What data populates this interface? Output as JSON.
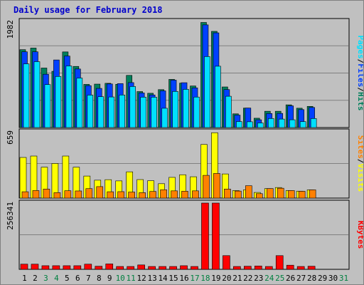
{
  "title": "Daily usage for February 2018",
  "colors": {
    "background": "#c0c0c0",
    "hits": "#00805c",
    "files": "#0040ff",
    "pages": "#00e0ff",
    "visits": "#ffff00",
    "sites": "#ff8000",
    "kbytes": "#ff0000",
    "weekend_label": "#008040",
    "weekday_label": "#000000"
  },
  "chart_data": [
    {
      "type": "bar",
      "panel": "hits-files-pages",
      "legend": [
        "Pages",
        "/",
        "Files",
        "/",
        "Hits"
      ],
      "ymax_label": "1982",
      "ylim": [
        0,
        1982
      ],
      "categories": [
        "1",
        "2",
        "3",
        "4",
        "5",
        "6",
        "7",
        "8",
        "9",
        "10",
        "11",
        "12",
        "13",
        "14",
        "15",
        "16",
        "17",
        "18",
        "19",
        "20",
        "21",
        "22",
        "23",
        "24",
        "25",
        "26",
        "27",
        "28",
        "29",
        "30",
        "31"
      ],
      "series": [
        {
          "name": "Hits",
          "values": [
            1454,
            1484,
            1111,
            1050,
            1412,
            1141,
            806,
            811,
            826,
            807,
            974,
            672,
            640,
            708,
            899,
            829,
            776,
            1962,
            1796,
            758,
            256,
            363,
            174,
            304,
            304,
            424,
            361,
            395,
            0,
            0,
            0
          ]
        },
        {
          "name": "Files",
          "values": [
            1414,
            1414,
            995,
            1262,
            1335,
            1093,
            782,
            731,
            814,
            820,
            839,
            646,
            609,
            685,
            885,
            837,
            740,
            1917,
            1768,
            709,
            232,
            364,
            145,
            262,
            264,
            405,
            335,
            375,
            0,
            0,
            0
          ]
        },
        {
          "name": "Pages",
          "values": [
            1189,
            1230,
            802,
            954,
            1150,
            924,
            606,
            576,
            571,
            608,
            766,
            567,
            566,
            360,
            674,
            713,
            569,
            1325,
            1145,
            584,
            112,
            108,
            86,
            168,
            158,
            145,
            111,
            168,
            0,
            0,
            0
          ]
        }
      ]
    },
    {
      "type": "bar",
      "panel": "visits-sites",
      "legend": [
        "Sites",
        "/",
        "Visits"
      ],
      "ymax_label": "659",
      "ylim": [
        0,
        659
      ],
      "categories": [
        "1",
        "2",
        "3",
        "4",
        "5",
        "6",
        "7",
        "8",
        "9",
        "10",
        "11",
        "12",
        "13",
        "14",
        "15",
        "16",
        "17",
        "18",
        "19",
        "20",
        "21",
        "22",
        "23",
        "24",
        "25",
        "26",
        "27",
        "28",
        "29",
        "30",
        "31"
      ],
      "series": [
        {
          "name": "Visits",
          "values": [
            404,
            418,
            307,
            344,
            418,
            307,
            219,
            178,
            183,
            171,
            261,
            184,
            173,
            143,
            206,
            232,
            212,
            533,
            650,
            240,
            75,
            82,
            56,
            94,
            105,
            75,
            69,
            82,
            0,
            0,
            0
          ]
        },
        {
          "name": "Sites",
          "values": [
            63,
            75,
            90,
            54,
            73,
            71,
            94,
            114,
            63,
            64,
            60,
            54,
            66,
            83,
            72,
            68,
            72,
            226,
            245,
            90,
            70,
            123,
            44,
            95,
            98,
            75,
            68,
            82,
            0,
            0,
            0
          ]
        }
      ]
    },
    {
      "type": "bar",
      "panel": "kbytes",
      "legend": [
        "KBytes"
      ],
      "ymax_label": "256341",
      "ylim": [
        0,
        256341
      ],
      "categories": [
        "1",
        "2",
        "3",
        "4",
        "5",
        "6",
        "7",
        "8",
        "9",
        "10",
        "11",
        "12",
        "13",
        "14",
        "15",
        "16",
        "17",
        "18",
        "19",
        "20",
        "21",
        "22",
        "23",
        "24",
        "25",
        "26",
        "27",
        "28",
        "29",
        "30",
        "31"
      ],
      "series": [
        {
          "name": "KBytes",
          "values": [
            20000,
            20000,
            14000,
            14000,
            14000,
            14000,
            20000,
            12000,
            21000,
            11000,
            11000,
            17000,
            11000,
            11000,
            11000,
            14000,
            11000,
            256341,
            256341,
            53000,
            11000,
            12000,
            13000,
            11000,
            53000,
            16000,
            11000,
            12000,
            0,
            0,
            0
          ]
        }
      ]
    }
  ],
  "x_labels": [
    {
      "text": "1",
      "weekend": false
    },
    {
      "text": "2",
      "weekend": false
    },
    {
      "text": "3",
      "weekend": true
    },
    {
      "text": "4",
      "weekend": true
    },
    {
      "text": "5",
      "weekend": false
    },
    {
      "text": "6",
      "weekend": false
    },
    {
      "text": "7",
      "weekend": false
    },
    {
      "text": "8",
      "weekend": false
    },
    {
      "text": "9",
      "weekend": false
    },
    {
      "text": "10",
      "weekend": true
    },
    {
      "text": "11",
      "weekend": true
    },
    {
      "text": "12",
      "weekend": false
    },
    {
      "text": "13",
      "weekend": false
    },
    {
      "text": "14",
      "weekend": false
    },
    {
      "text": "15",
      "weekend": false
    },
    {
      "text": "16",
      "weekend": false
    },
    {
      "text": "17",
      "weekend": true
    },
    {
      "text": "18",
      "weekend": true
    },
    {
      "text": "19",
      "weekend": false
    },
    {
      "text": "20",
      "weekend": false
    },
    {
      "text": "21",
      "weekend": false
    },
    {
      "text": "22",
      "weekend": false
    },
    {
      "text": "23",
      "weekend": false
    },
    {
      "text": "24",
      "weekend": true
    },
    {
      "text": "25",
      "weekend": true
    },
    {
      "text": "26",
      "weekend": false
    },
    {
      "text": "27",
      "weekend": false
    },
    {
      "text": "28",
      "weekend": false
    },
    {
      "text": "29",
      "weekend": false
    },
    {
      "text": "30",
      "weekend": false
    },
    {
      "text": "31",
      "weekend": true
    }
  ]
}
